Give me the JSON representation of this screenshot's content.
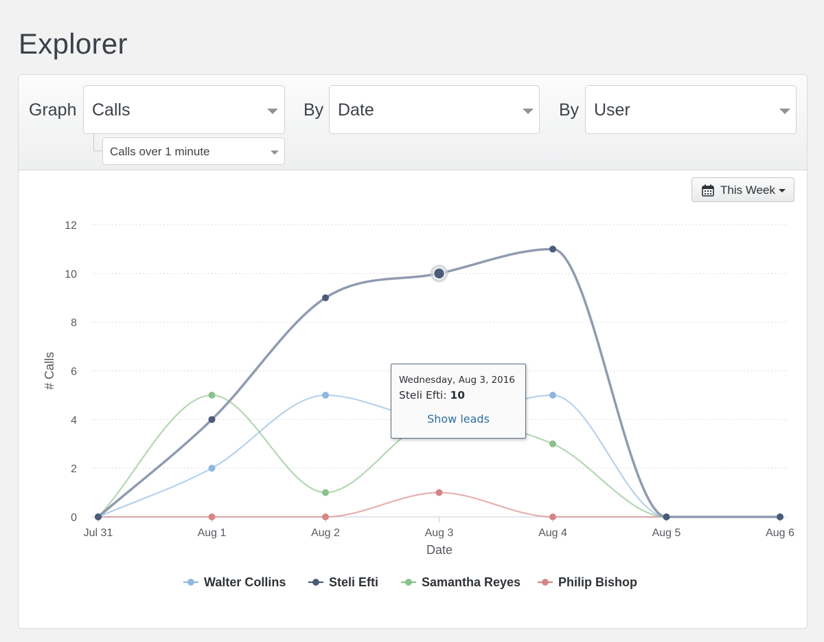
{
  "page": {
    "title": "Explorer"
  },
  "controls": {
    "graph_label": "Graph",
    "metric_value": "Calls",
    "metric_filter_value": "Calls over 1 minute",
    "by_label_1": "By",
    "group_value": "Date",
    "by_label_2": "By",
    "split_value": "User",
    "range_button_label": "This Week",
    "range_button_icon": "calendar-icon"
  },
  "tooltip": {
    "date": "Wednesday, Aug 3, 2016",
    "series_name": "Steli Efti",
    "value": "10",
    "link_label": "Show leads"
  },
  "chart_data": {
    "type": "line",
    "categories": [
      "Jul 31",
      "Aug 1",
      "Aug 2",
      "Aug 3",
      "Aug 4",
      "Aug 5",
      "Aug 6"
    ],
    "xlabel": "Date",
    "ylabel": "# Calls",
    "ylim": [
      0,
      12
    ],
    "yticks": [
      "0",
      "2",
      "4",
      "6",
      "8",
      "10",
      "12"
    ],
    "grid": true,
    "legend_position": "bottom",
    "highlight": {
      "series": "Steli Efti",
      "category": "Aug 3"
    },
    "series": [
      {
        "name": "Walter Collins",
        "color": "#8fb8e0",
        "values": [
          0,
          2,
          5,
          4,
          5,
          0,
          0
        ]
      },
      {
        "name": "Steli Efti",
        "color": "#4a5c78",
        "values": [
          0,
          4,
          9,
          10,
          11,
          0,
          0
        ]
      },
      {
        "name": "Samantha Reyes",
        "color": "#8cc08c",
        "values": [
          0,
          5,
          1,
          4,
          3,
          0,
          0
        ]
      },
      {
        "name": "Philip Bishop",
        "color": "#d98585",
        "values": [
          0,
          0,
          0,
          1,
          0,
          0,
          0
        ]
      }
    ]
  }
}
